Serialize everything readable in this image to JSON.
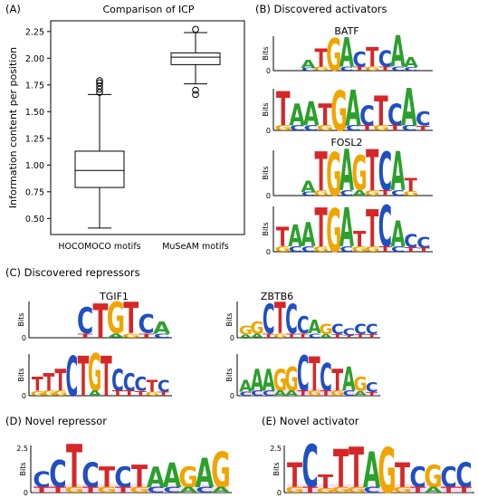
{
  "panels": {
    "A": "(A)",
    "B": "(B) Discovered activators",
    "C": "(C) Discovered repressors",
    "D": "(D) Novel repressor",
    "E": "(E) Novel activator"
  },
  "chart_data": {
    "type": "box",
    "title": "Comparison of ICP",
    "ylabel": "Information content per position",
    "ylim": [
      0.35,
      2.35
    ],
    "yticks": [
      0.5,
      0.75,
      1.0,
      1.25,
      1.5,
      1.75,
      2.0,
      2.25
    ],
    "ytick_labels": [
      "0.50",
      "0.75",
      "1.00",
      "1.25",
      "1.50",
      "1.75",
      "2.00",
      "2.25"
    ],
    "categories": [
      "HOCOMOCO motifs",
      "MuSeAM motifs"
    ],
    "boxes": [
      {
        "whisker_low": 0.41,
        "q1": 0.79,
        "median": 0.95,
        "q3": 1.13,
        "whisker_high": 1.66,
        "outliers": [
          1.68,
          1.71,
          1.74,
          1.77,
          1.79
        ]
      },
      {
        "whisker_low": 1.76,
        "q1": 1.94,
        "median": 2.01,
        "q3": 2.05,
        "whisker_high": 2.24,
        "outliers": [
          1.66,
          1.7,
          2.27
        ]
      }
    ]
  },
  "logo_labels": {
    "bits": "Bits",
    "batf": "BATF",
    "fosl2": "FOSL2",
    "tgif1": "TGIF1",
    "zbtb6": "ZBTB6",
    "y_zero": "0",
    "y_max": "2.5"
  },
  "colors": {
    "A": "#2ca02c",
    "C": "#1f4fc2",
    "G": "#f0a500",
    "T": "#d62728",
    "highlight": "#f6c6e6"
  },
  "logos": {
    "batf_1": [
      "-",
      "-",
      "A",
      "T",
      "G",
      "A",
      "C",
      "T",
      "C",
      "A",
      "A",
      "-"
    ],
    "batf_2": [
      "T",
      "A",
      "A",
      "T",
      "G",
      "A",
      "C",
      "T",
      "C",
      "A",
      "C"
    ],
    "fosl2_1": [
      "-",
      "-",
      "A",
      "T",
      "G",
      "A",
      "G",
      "T",
      "C",
      "A",
      "T",
      "-"
    ],
    "fosl2_2": [
      "T",
      "A",
      "A",
      "T",
      "G",
      "A",
      "T",
      "T",
      "C",
      "A",
      "C",
      "C"
    ],
    "tgif1_1": [
      "-",
      "-",
      "-",
      "C",
      "T",
      "G",
      "T",
      "C",
      "A"
    ],
    "tgif1_2": [
      "T",
      "T",
      "T",
      "C",
      "T",
      "G",
      "T",
      "C",
      "C",
      "C",
      "T",
      "C"
    ],
    "zbtb6_1": [
      "G",
      "G",
      "C",
      "T",
      "C",
      "C",
      "A",
      "G",
      "C",
      "C",
      "C",
      "C"
    ],
    "zbtb6_2": [
      "A",
      "A",
      "A",
      "G",
      "G",
      "C",
      "T",
      "C",
      "T",
      "A",
      "G",
      "C"
    ],
    "novel_rep": [
      "C",
      "C",
      "T",
      "C",
      "T",
      "C",
      "T",
      "A",
      "A",
      "G",
      "A",
      "G"
    ],
    "novel_act": [
      "T",
      "C",
      "T",
      "T",
      "T",
      "A",
      "G",
      "T",
      "C",
      "G",
      "C",
      "C"
    ]
  }
}
